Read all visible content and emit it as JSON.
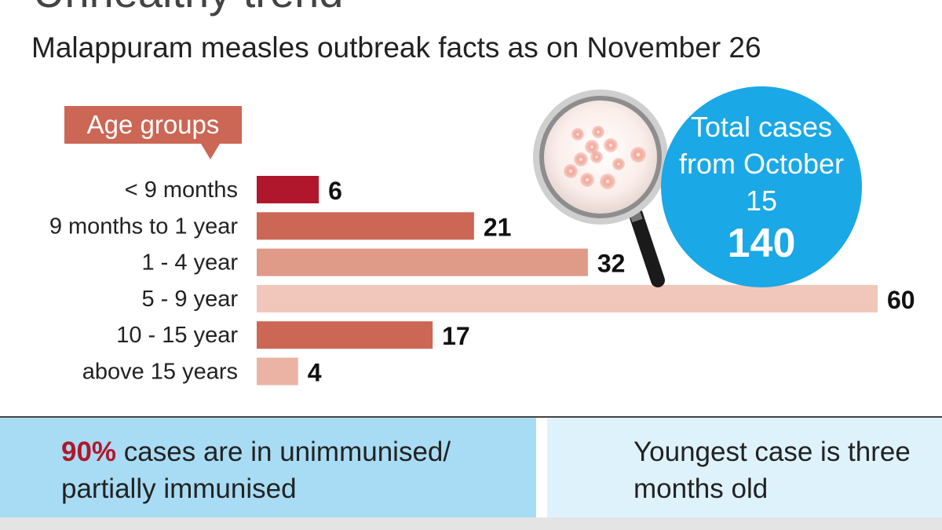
{
  "title": "Unhealthy trend",
  "subtitle": "Malappuram measles outbreak facts as on November 26",
  "age_groups_label": "Age groups",
  "total": {
    "label": "Total cases from October 15",
    "value": "140",
    "color": "#1aa8e6"
  },
  "facts": {
    "left_highlight": "90%",
    "left_text": " cases are in unimmunised/ partially immunised",
    "right_text": "Youngest case is three months old"
  },
  "chart_data": {
    "type": "bar",
    "orientation": "horizontal",
    "categories": [
      "< 9 months",
      "9 months to 1 year",
      "1 - 4 year",
      "5 - 9 year",
      "10 - 15 year",
      "above 15 years"
    ],
    "values": [
      6,
      21,
      32,
      60,
      17,
      4
    ],
    "colors": [
      "#b0172d",
      "#cc6655",
      "#e09a88",
      "#f0c7ba",
      "#cc6655",
      "#eab3a4"
    ],
    "title": "Malappuram measles outbreak facts as on November 26",
    "xlabel": "",
    "ylabel": "",
    "xlim": [
      0,
      60
    ],
    "grid": false
  }
}
